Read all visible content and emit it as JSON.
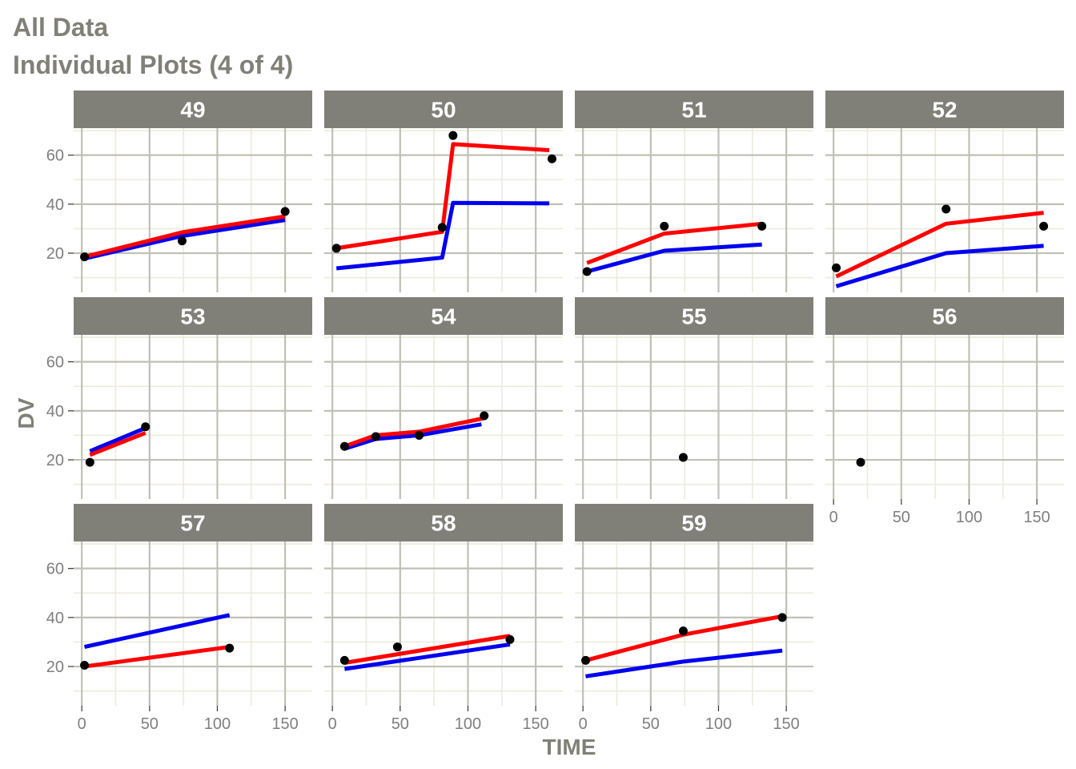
{
  "title": "All Data",
  "subtitle": "Individual Plots (4 of 4)",
  "chart_data": {
    "type": "line",
    "xlabel": "TIME",
    "ylabel": "DV",
    "xlim": [
      -6,
      170
    ],
    "ylim": [
      4,
      71
    ],
    "x_ticks": [
      0,
      50,
      100,
      150
    ],
    "y_ticks": [
      20,
      40,
      60
    ],
    "grid": true,
    "colors": {
      "panel_bg": "#ffffff",
      "strip_bg": "#808078",
      "strip_text": "#ffffff",
      "grid_major": "#c0c0b6",
      "grid_minor": "#ecebdc",
      "observed": "#000000",
      "series_red": "#ff0000",
      "series_blue": "#0000ee"
    },
    "layout": {
      "columns": 4,
      "rows": 3
    },
    "series_styles": [
      {
        "key": "blue",
        "color": "#0000ee"
      },
      {
        "key": "red",
        "color": "#ff0000"
      }
    ],
    "panels": [
      {
        "id": "49",
        "points": [
          [
            2,
            18.5
          ],
          [
            74,
            25
          ],
          [
            150,
            37
          ]
        ],
        "red": [
          [
            2,
            18.5
          ],
          [
            74,
            28.5
          ],
          [
            150,
            35
          ]
        ],
        "blue": [
          [
            2,
            17.8
          ],
          [
            74,
            27
          ],
          [
            150,
            33.5
          ]
        ]
      },
      {
        "id": "50",
        "points": [
          [
            3,
            22
          ],
          [
            81,
            30.5
          ],
          [
            89,
            68
          ],
          [
            162,
            58.5
          ]
        ],
        "red": [
          [
            3,
            22
          ],
          [
            81,
            28.7
          ],
          [
            89,
            64.5
          ],
          [
            160,
            62
          ]
        ],
        "blue": [
          [
            3,
            13.8
          ],
          [
            81,
            18.2
          ],
          [
            89,
            40.5
          ],
          [
            160,
            40.3
          ]
        ]
      },
      {
        "id": "51",
        "points": [
          [
            3,
            12.5
          ],
          [
            60,
            31
          ],
          [
            132,
            31
          ]
        ],
        "red": [
          [
            3,
            16
          ],
          [
            60,
            28
          ],
          [
            132,
            32
          ]
        ],
        "blue": [
          [
            3,
            12.5
          ],
          [
            60,
            21
          ],
          [
            132,
            23.5
          ]
        ]
      },
      {
        "id": "52",
        "points": [
          [
            2,
            14
          ],
          [
            83,
            38
          ],
          [
            155,
            31
          ]
        ],
        "red": [
          [
            2,
            10.5
          ],
          [
            83,
            32
          ],
          [
            155,
            36.5
          ]
        ],
        "blue": [
          [
            2,
            6.5
          ],
          [
            83,
            20
          ],
          [
            155,
            23
          ]
        ]
      },
      {
        "id": "53",
        "points": [
          [
            6,
            19
          ],
          [
            47,
            33.5
          ]
        ],
        "red": [
          [
            6,
            22
          ],
          [
            47,
            31
          ]
        ],
        "blue": [
          [
            6,
            23.5
          ],
          [
            47,
            33
          ]
        ]
      },
      {
        "id": "54",
        "points": [
          [
            9,
            25.5
          ],
          [
            32,
            29.5
          ],
          [
            64,
            30
          ],
          [
            112,
            38
          ]
        ],
        "red": [
          [
            9,
            25.5
          ],
          [
            32,
            30
          ],
          [
            64,
            31.5
          ],
          [
            112,
            37
          ]
        ],
        "blue": [
          [
            9,
            24.5
          ],
          [
            32,
            28.5
          ],
          [
            64,
            30
          ],
          [
            110,
            34.5
          ]
        ]
      },
      {
        "id": "55",
        "points": [
          [
            74,
            21
          ]
        ],
        "red": [],
        "blue": []
      },
      {
        "id": "56",
        "points": [
          [
            20,
            19
          ]
        ],
        "red": [],
        "blue": []
      },
      {
        "id": "57",
        "points": [
          [
            2,
            20.5
          ],
          [
            109,
            27.5
          ]
        ],
        "red": [
          [
            2,
            20
          ],
          [
            109,
            28
          ]
        ],
        "blue": [
          [
            2,
            28
          ],
          [
            109,
            41
          ]
        ]
      },
      {
        "id": "58",
        "points": [
          [
            9,
            22.5
          ],
          [
            48,
            28
          ],
          [
            131,
            31
          ]
        ],
        "red": [
          [
            9,
            21.5
          ],
          [
            131,
            32.5
          ]
        ],
        "blue": [
          [
            9,
            19
          ],
          [
            131,
            29
          ]
        ]
      },
      {
        "id": "59",
        "points": [
          [
            2,
            22.5
          ],
          [
            74,
            34.5
          ],
          [
            147,
            40
          ]
        ],
        "red": [
          [
            2,
            22.5
          ],
          [
            74,
            33
          ],
          [
            147,
            40.5
          ]
        ],
        "blue": [
          [
            2,
            16
          ],
          [
            74,
            22
          ],
          [
            147,
            26.5
          ]
        ]
      }
    ]
  }
}
